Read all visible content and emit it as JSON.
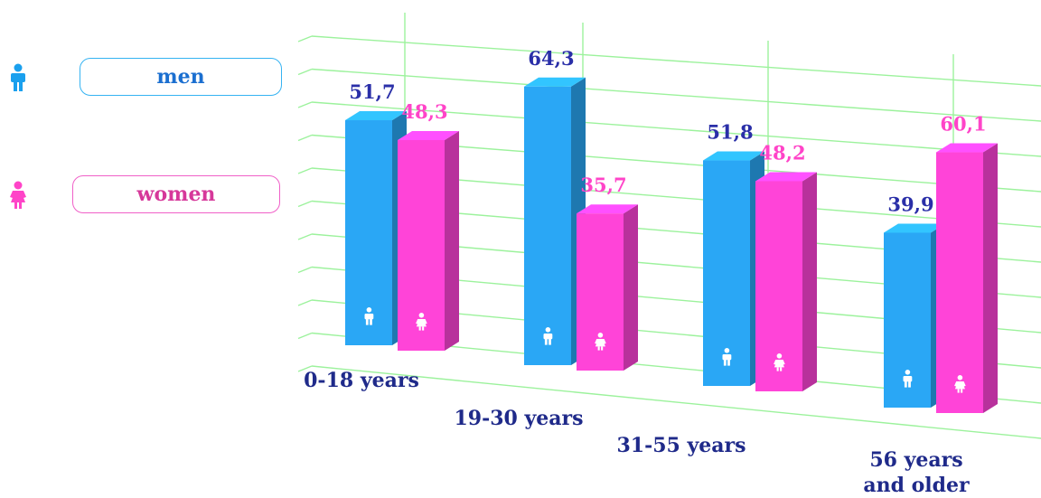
{
  "legend": {
    "men": {
      "label": "men",
      "icon": "man-icon",
      "color": "#2aa7f5"
    },
    "women": {
      "label": "women",
      "icon": "woman-icon",
      "color": "#ff44d8"
    }
  },
  "chart_data": {
    "type": "bar",
    "style": "3d",
    "categories": [
      [
        "0-18 years"
      ],
      [
        "19-30 years"
      ],
      [
        "31-55 years"
      ],
      [
        "56 years",
        "and older"
      ]
    ],
    "series": [
      {
        "name": "men",
        "values": [
          51.7,
          64.3,
          51.8,
          39.9
        ],
        "labels": [
          "51,7",
          "64,3",
          "51,8",
          "39,9"
        ],
        "color": "#2aa7f5"
      },
      {
        "name": "women",
        "values": [
          48.3,
          35.7,
          48.2,
          60.1
        ],
        "labels": [
          "48,3",
          "35,7",
          "48,2",
          "60,1"
        ],
        "color": "#ff44d8"
      }
    ],
    "grid": true,
    "grid_color": "#9cf29c",
    "legend_position": "left"
  }
}
